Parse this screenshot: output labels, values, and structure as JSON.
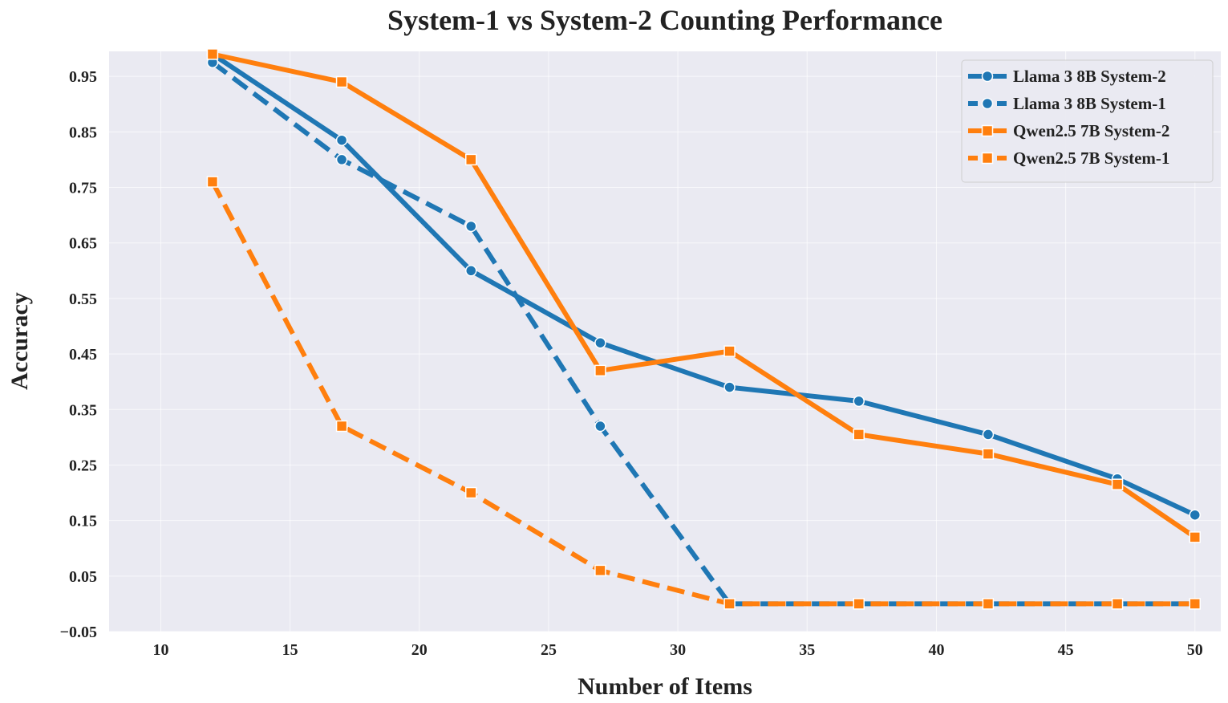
{
  "chart_data": {
    "type": "line",
    "title": "System-1 vs System-2 Counting Performance",
    "xlabel": "Number of Items",
    "ylabel": "Accuracy",
    "xlim": [
      8,
      51
    ],
    "ylim": [
      -0.05,
      0.995
    ],
    "xticks": [
      10,
      15,
      20,
      25,
      30,
      35,
      40,
      45,
      50
    ],
    "xtick_labels": [
      "10",
      "15",
      "20",
      "25",
      "30",
      "35",
      "40",
      "45",
      "50"
    ],
    "yticks": [
      -0.05,
      0.05,
      0.15,
      0.25,
      0.35,
      0.45,
      0.55,
      0.65,
      0.75,
      0.85,
      0.95
    ],
    "ytick_labels": [
      "−0.05",
      "0.05",
      "0.15",
      "0.25",
      "0.35",
      "0.45",
      "0.55",
      "0.65",
      "0.75",
      "0.85",
      "0.95"
    ],
    "x": [
      12,
      17,
      22,
      27,
      32,
      37,
      42,
      47,
      50
    ],
    "grid": true,
    "legend_position": "top-right",
    "series": [
      {
        "name": "Llama 3 8B System-2",
        "color": "#1f77b4",
        "dash": "solid",
        "marker": "circle",
        "values": [
          0.99,
          0.835,
          0.6,
          0.47,
          0.39,
          0.365,
          0.305,
          0.225,
          0.16
        ]
      },
      {
        "name": "Llama 3 8B System-1",
        "color": "#1f77b4",
        "dash": "dashed",
        "marker": "circle",
        "values": [
          0.975,
          0.8,
          0.68,
          0.32,
          0.0,
          0.0,
          0.0,
          0.0,
          0.0
        ]
      },
      {
        "name": "Qwen2.5 7B System-2",
        "color": "#ff7f0e",
        "dash": "solid",
        "marker": "square",
        "values": [
          0.99,
          0.94,
          0.8,
          0.42,
          0.455,
          0.305,
          0.27,
          0.215,
          0.12
        ]
      },
      {
        "name": "Qwen2.5 7B System-1",
        "color": "#ff7f0e",
        "dash": "dashed",
        "marker": "square",
        "values": [
          0.76,
          0.32,
          0.2,
          0.06,
          0.0,
          0.0,
          0.0,
          0.0,
          0.0
        ]
      }
    ]
  }
}
